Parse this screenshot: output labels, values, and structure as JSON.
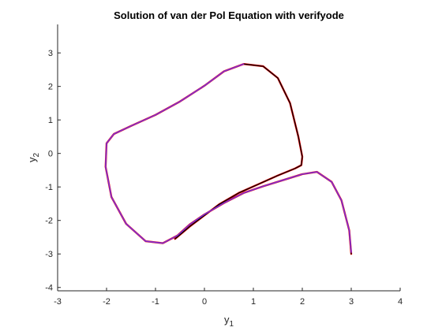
{
  "chart_data": {
    "type": "line",
    "title": "Solution of van der Pol Equation with verifyode",
    "xlabel": {
      "base": "y",
      "sub": "1"
    },
    "ylabel": {
      "base": "y",
      "sub": "2"
    },
    "xlim": [
      -3,
      4
    ],
    "ylim": [
      -4.1,
      3.85
    ],
    "xticks": [
      -3,
      -2,
      -1,
      0,
      1,
      2,
      3,
      4
    ],
    "yticks": [
      -4,
      -3,
      -2,
      -1,
      0,
      1,
      2,
      3
    ],
    "grid": false,
    "legend": "none",
    "series": [
      {
        "color": "#ff0000",
        "width": 2.4,
        "points": [
          [
            3,
            -3
          ],
          [
            2.96,
            -2.3
          ],
          [
            2.8,
            -1.4
          ],
          [
            2.6,
            -0.85
          ],
          [
            2.3,
            -0.55
          ],
          [
            2,
            -0.62
          ],
          [
            1.6,
            -0.8
          ],
          [
            1.2,
            -0.98
          ],
          [
            0.8,
            -1.18
          ],
          [
            0.4,
            -1.48
          ],
          [
            0,
            -1.82
          ],
          [
            -0.3,
            -2.12
          ],
          [
            -0.55,
            -2.45
          ],
          [
            -0.85,
            -2.68
          ],
          [
            -1.2,
            -2.62
          ],
          [
            -1.6,
            -2.1
          ],
          [
            -1.9,
            -1.3
          ],
          [
            -2.02,
            -0.4
          ],
          [
            -2.0,
            0.3
          ],
          [
            -1.85,
            0.58
          ],
          [
            -1.5,
            0.82
          ],
          [
            -1.0,
            1.15
          ],
          [
            -0.5,
            1.55
          ],
          [
            0,
            2.02
          ],
          [
            0.4,
            2.45
          ],
          [
            0.8,
            2.67
          ],
          [
            1.2,
            2.6
          ],
          [
            1.5,
            2.25
          ],
          [
            1.75,
            1.5
          ],
          [
            1.92,
            0.5
          ],
          [
            2.0,
            -0.1
          ],
          [
            1.98,
            -0.35
          ],
          [
            1.85,
            -0.45
          ],
          [
            1.5,
            -0.66
          ],
          [
            1.1,
            -0.92
          ],
          [
            0.7,
            -1.18
          ],
          [
            0.3,
            -1.52
          ],
          [
            0,
            -1.85
          ],
          [
            -0.3,
            -2.18
          ],
          [
            -0.6,
            -2.55
          ]
        ]
      },
      {
        "color": "#000000",
        "width": 1.3,
        "points": [
          [
            3,
            -3
          ],
          [
            2.96,
            -2.3
          ],
          [
            2.8,
            -1.4
          ],
          [
            2.6,
            -0.85
          ],
          [
            2.3,
            -0.55
          ],
          [
            2,
            -0.62
          ],
          [
            1.6,
            -0.8
          ],
          [
            1.2,
            -0.98
          ],
          [
            0.8,
            -1.18
          ],
          [
            0.4,
            -1.48
          ],
          [
            0,
            -1.82
          ],
          [
            -0.3,
            -2.12
          ],
          [
            -0.55,
            -2.45
          ],
          [
            -0.85,
            -2.68
          ],
          [
            -1.2,
            -2.62
          ],
          [
            -1.6,
            -2.1
          ],
          [
            -1.9,
            -1.3
          ],
          [
            -2.02,
            -0.4
          ],
          [
            -2.0,
            0.3
          ],
          [
            -1.85,
            0.58
          ],
          [
            -1.5,
            0.82
          ],
          [
            -1.0,
            1.15
          ],
          [
            -0.5,
            1.55
          ],
          [
            0,
            2.02
          ],
          [
            0.4,
            2.45
          ],
          [
            0.8,
            2.67
          ],
          [
            1.2,
            2.6
          ],
          [
            1.5,
            2.25
          ],
          [
            1.75,
            1.5
          ],
          [
            1.92,
            0.5
          ],
          [
            2.0,
            -0.1
          ],
          [
            1.98,
            -0.35
          ],
          [
            1.85,
            -0.45
          ],
          [
            1.5,
            -0.66
          ],
          [
            1.1,
            -0.92
          ],
          [
            0.7,
            -1.18
          ],
          [
            0.3,
            -1.52
          ],
          [
            0,
            -1.85
          ],
          [
            -0.3,
            -2.18
          ],
          [
            -0.6,
            -2.55
          ]
        ]
      },
      {
        "color": "#7e2fd6",
        "width": 1.6,
        "points": [
          [
            3,
            -2.95
          ],
          [
            2.96,
            -2.3
          ],
          [
            2.8,
            -1.4
          ],
          [
            2.6,
            -0.85
          ],
          [
            2.3,
            -0.55
          ],
          [
            2,
            -0.62
          ],
          [
            1.6,
            -0.8
          ],
          [
            1.2,
            -0.98
          ],
          [
            0.8,
            -1.18
          ],
          [
            0.4,
            -1.48
          ],
          [
            0,
            -1.82
          ],
          [
            -0.3,
            -2.12
          ],
          [
            -0.55,
            -2.45
          ],
          [
            -0.85,
            -2.68
          ],
          [
            -1.2,
            -2.62
          ],
          [
            -1.6,
            -2.1
          ],
          [
            -1.9,
            -1.3
          ],
          [
            -2.02,
            -0.4
          ],
          [
            -2.0,
            0.3
          ],
          [
            -1.85,
            0.58
          ],
          [
            -1.5,
            0.82
          ],
          [
            -1.0,
            1.15
          ],
          [
            -0.5,
            1.55
          ],
          [
            0,
            2.02
          ],
          [
            0.4,
            2.45
          ],
          [
            0.8,
            2.67
          ]
        ]
      }
    ]
  }
}
